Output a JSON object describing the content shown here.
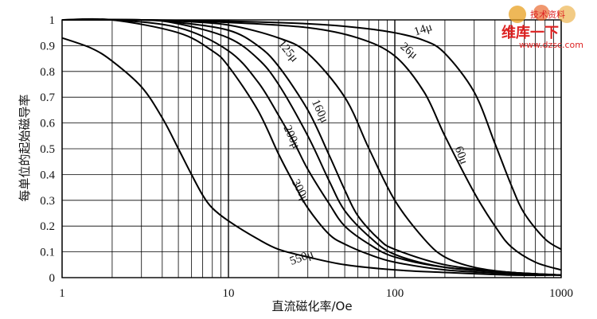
{
  "chart_data": {
    "type": "line",
    "xscale": "log",
    "xlim": [
      1,
      1000
    ],
    "ylim": [
      0,
      1
    ],
    "xlabel": "直流磁化率/Oe",
    "ylabel": "每单位的起始磁导率",
    "xticks": [
      "1",
      "10",
      "100",
      "1000"
    ],
    "yticks": [
      "0",
      "0.1",
      "0.2",
      "0.3",
      "0.4",
      "0.5",
      "0.6",
      "0.7",
      "0.8",
      "0.9",
      "1"
    ],
    "grid": true,
    "series": [
      {
        "name": "14μ",
        "x": [
          1,
          3,
          10,
          30,
          60,
          100,
          150,
          200,
          300,
          400,
          500,
          600,
          800,
          1000
        ],
        "y": [
          1,
          1,
          0.995,
          0.985,
          0.97,
          0.95,
          0.92,
          0.87,
          0.72,
          0.52,
          0.36,
          0.25,
          0.15,
          0.11
        ]
      },
      {
        "name": "26μ",
        "x": [
          1,
          3,
          10,
          30,
          60,
          100,
          150,
          200,
          300,
          400,
          500,
          700,
          1000
        ],
        "y": [
          1,
          1,
          0.99,
          0.97,
          0.93,
          0.86,
          0.72,
          0.55,
          0.33,
          0.2,
          0.12,
          0.06,
          0.03
        ]
      },
      {
        "name": "60μ",
        "x": [
          1,
          3,
          5,
          10,
          20,
          30,
          50,
          70,
          100,
          150,
          200,
          300,
          500,
          1000
        ],
        "y": [
          1,
          1,
          0.995,
          0.98,
          0.93,
          0.87,
          0.7,
          0.5,
          0.3,
          0.15,
          0.08,
          0.04,
          0.02,
          0.01
        ]
      },
      {
        "name": "125μ",
        "x": [
          1,
          3,
          5,
          10,
          15,
          20,
          30,
          40,
          50,
          60,
          80,
          100,
          200,
          500,
          1000
        ],
        "y": [
          1,
          1,
          0.99,
          0.96,
          0.9,
          0.82,
          0.65,
          0.48,
          0.34,
          0.24,
          0.15,
          0.11,
          0.05,
          0.02,
          0.01
        ]
      },
      {
        "name": "160μ",
        "x": [
          1,
          3,
          5,
          10,
          15,
          20,
          30,
          40,
          50,
          70,
          100,
          200,
          500,
          1000
        ],
        "y": [
          1,
          1,
          0.985,
          0.93,
          0.85,
          0.75,
          0.55,
          0.38,
          0.26,
          0.16,
          0.09,
          0.04,
          0.02,
          0.01
        ]
      },
      {
        "name": "200μ",
        "x": [
          1,
          2,
          5,
          10,
          15,
          20,
          25,
          30,
          40,
          50,
          70,
          100,
          200,
          500,
          1000
        ],
        "y": [
          1,
          1,
          0.97,
          0.88,
          0.76,
          0.63,
          0.52,
          0.42,
          0.29,
          0.2,
          0.13,
          0.08,
          0.04,
          0.02,
          0.01
        ]
      },
      {
        "name": "300μ",
        "x": [
          1,
          2,
          5,
          8,
          10,
          15,
          20,
          25,
          30,
          40,
          50,
          70,
          100,
          200,
          500,
          1000
        ],
        "y": [
          1,
          1,
          0.95,
          0.88,
          0.82,
          0.65,
          0.48,
          0.36,
          0.27,
          0.17,
          0.13,
          0.09,
          0.06,
          0.03,
          0.015,
          0.01
        ]
      },
      {
        "name": "550μ",
        "x": [
          1,
          1.5,
          2,
          3,
          4,
          5,
          6,
          7,
          8,
          10,
          15,
          20,
          30,
          50,
          100,
          200,
          500,
          1000
        ],
        "y": [
          0.93,
          0.89,
          0.84,
          0.74,
          0.62,
          0.5,
          0.4,
          0.32,
          0.27,
          0.22,
          0.15,
          0.11,
          0.08,
          0.05,
          0.03,
          0.02,
          0.01,
          0.01
        ]
      }
    ]
  },
  "watermark": {
    "line1": "维库一下",
    "line2": "www.dzsc.com",
    "line3": "技术资料"
  }
}
